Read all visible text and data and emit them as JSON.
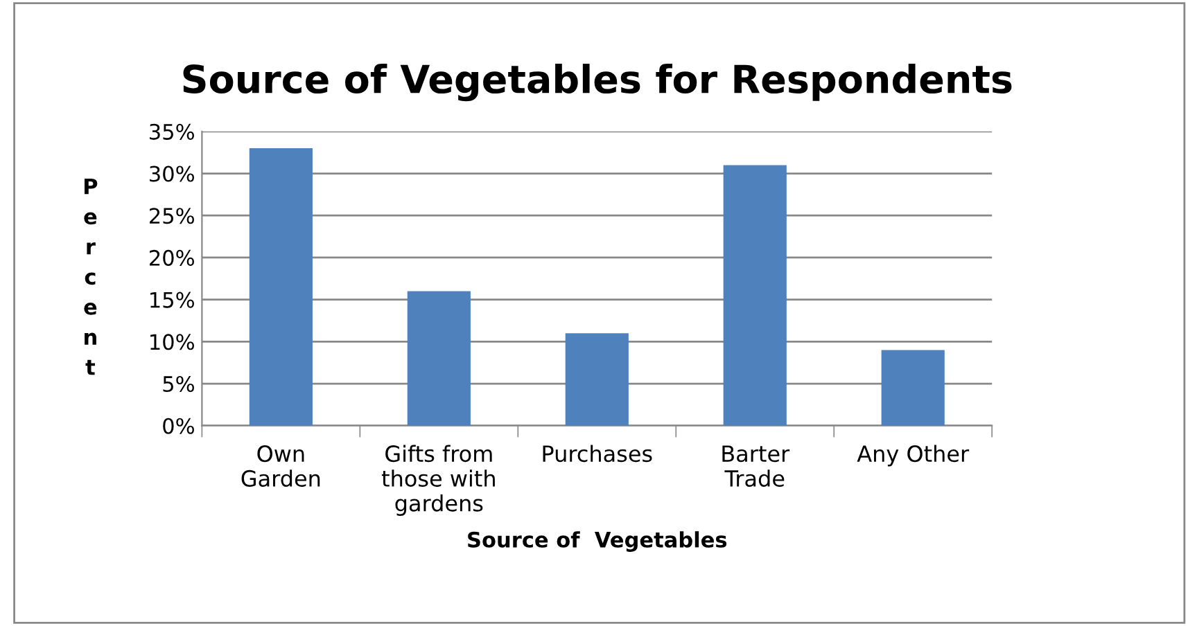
{
  "chart_data": {
    "type": "bar",
    "title": "Source of Vegetables for Respondents",
    "xlabel": "Source of  Vegetables",
    "ylabel": "Percent",
    "categories": [
      "Own\nGarden",
      "Gifts from\nthose with\ngardens",
      "Purchases",
      "Barter\nTrade",
      "Any Other"
    ],
    "values": [
      33,
      16,
      11,
      31,
      9
    ],
    "color": "#4f81bd",
    "ylim": [
      0,
      35
    ],
    "yticks": [
      {
        "value": 0,
        "label": "0%"
      },
      {
        "value": 5,
        "label": "5%"
      },
      {
        "value": 10,
        "label": "10%"
      },
      {
        "value": 15,
        "label": "15%"
      },
      {
        "value": 20,
        "label": "20%"
      },
      {
        "value": 25,
        "label": "25%"
      },
      {
        "value": 30,
        "label": "30%"
      },
      {
        "value": 35,
        "label": "35%"
      }
    ],
    "grid": "y",
    "legend": false
  }
}
